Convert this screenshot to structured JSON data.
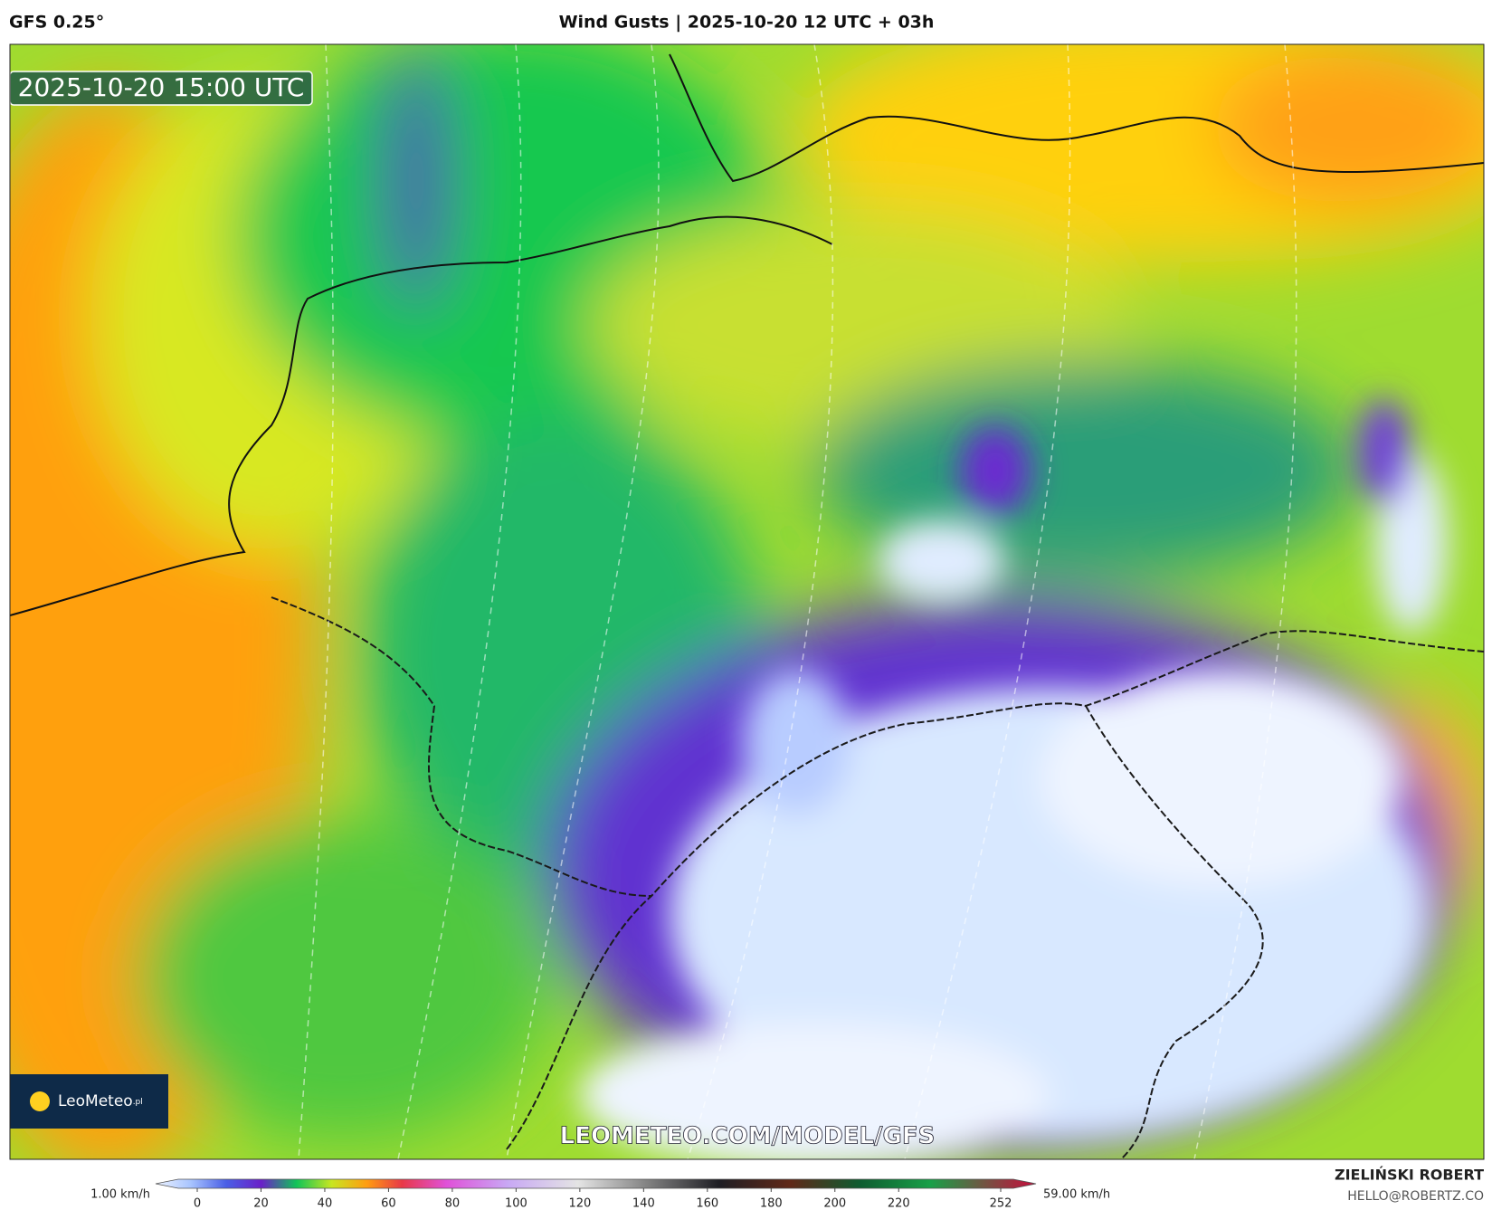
{
  "header": {
    "model": "GFS 0.25°",
    "title": "Wind Gusts | 2025-10-20 12 UTC + 03h"
  },
  "map": {
    "timestamp": "2025-10-20 15:00 UTC",
    "watermark": "LEOMETEO.COM/MODEL/GFS",
    "logo": "LeoMeteo",
    "logo_suffix": ".pl"
  },
  "colorbar": {
    "min_label": "1.00 km/h",
    "max_label": "59.00 km/h",
    "ticks": [
      0,
      20,
      40,
      60,
      80,
      100,
      120,
      140,
      160,
      180,
      200,
      220,
      252
    ]
  },
  "credits": {
    "name": "ZIELIŃSKI ROBERT",
    "email": "HELLO@ROBERTZ.CO"
  }
}
